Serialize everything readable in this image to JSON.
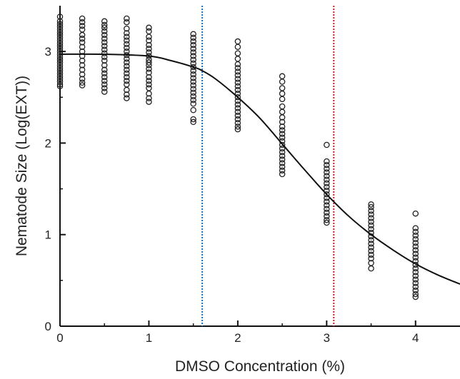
{
  "chart_data": {
    "type": "scatter",
    "title": "",
    "xlabel": "DMSO Concentration (%)",
    "ylabel": "Nematode Size (Log(EXT))",
    "xlim": [
      0,
      4.5
    ],
    "ylim": [
      0,
      3.5
    ],
    "xticks": [
      0,
      1,
      2,
      3,
      4
    ],
    "yticks": [
      0,
      1,
      2,
      3
    ],
    "x_tick_labels": [
      "0",
      "1",
      "2",
      "3",
      "4"
    ],
    "y_tick_labels": [
      "0",
      "1",
      "2",
      "3"
    ],
    "grid": false,
    "legend": "none",
    "series": [
      {
        "marker": "open-circle",
        "color": "#222222",
        "points": [
          {
            "x": 0,
            "values": [
              3.38,
              3.33,
              3.3,
              3.27,
              3.24,
              3.21,
              3.18,
              3.15,
              3.12,
              3.09,
              3.06,
              3.03,
              3.0,
              2.97,
              2.94,
              2.91,
              2.88,
              2.85,
              2.82,
              2.79,
              2.76,
              2.73,
              2.7,
              2.67,
              2.64,
              2.62
            ]
          },
          {
            "x": 0.25,
            "values": [
              3.36,
              3.32,
              3.28,
              3.24,
              3.18,
              3.14,
              3.1,
              3.05,
              3.0,
              2.95,
              2.9,
              2.85,
              2.8,
              2.75,
              2.7,
              2.66,
              2.63
            ]
          },
          {
            "x": 0.5,
            "values": [
              3.33,
              3.29,
              3.26,
              3.22,
              3.18,
              3.14,
              3.1,
              3.06,
              3.02,
              2.98,
              2.94,
              2.9,
              2.85,
              2.8,
              2.76,
              2.72,
              2.68,
              2.64,
              2.6,
              2.56
            ]
          },
          {
            "x": 0.75,
            "values": [
              3.36,
              3.32,
              3.25,
              3.2,
              3.16,
              3.12,
              3.08,
              3.04,
              3.0,
              2.96,
              2.92,
              2.88,
              2.84,
              2.8,
              2.76,
              2.72,
              2.68,
              2.64,
              2.58,
              2.53,
              2.49
            ]
          },
          {
            "x": 1,
            "values": [
              3.26,
              3.22,
              3.16,
              3.12,
              3.07,
              3.03,
              2.99,
              2.95,
              2.91,
              2.88,
              2.85,
              2.81,
              2.77,
              2.72,
              2.68,
              2.64,
              2.6,
              2.54,
              2.49,
              2.45
            ]
          },
          {
            "x": 1.5,
            "values": [
              3.19,
              3.15,
              3.11,
              3.07,
              3.03,
              2.99,
              2.95,
              2.91,
              2.87,
              2.83,
              2.79,
              2.75,
              2.71,
              2.67,
              2.63,
              2.59,
              2.55,
              2.51,
              2.47,
              2.43,
              2.36,
              2.26,
              2.23
            ]
          },
          {
            "x": 2,
            "values": [
              3.11,
              3.05,
              2.98,
              2.92,
              2.86,
              2.82,
              2.78,
              2.74,
              2.7,
              2.66,
              2.62,
              2.58,
              2.54,
              2.5,
              2.46,
              2.42,
              2.38,
              2.34,
              2.3,
              2.26,
              2.22,
              2.18,
              2.15
            ]
          },
          {
            "x": 2.5,
            "values": [
              2.73,
              2.67,
              2.6,
              2.54,
              2.48,
              2.4,
              2.34,
              2.28,
              2.23,
              2.18,
              2.14,
              2.1,
              2.06,
              2.02,
              1.98,
              1.94,
              1.9,
              1.86,
              1.82,
              1.78,
              1.74,
              1.7,
              1.66
            ]
          },
          {
            "x": 3,
            "values": [
              1.98,
              1.8,
              1.76,
              1.72,
              1.68,
              1.64,
              1.6,
              1.56,
              1.52,
              1.48,
              1.44,
              1.4,
              1.36,
              1.32,
              1.28,
              1.24,
              1.2,
              1.16,
              1.13
            ]
          },
          {
            "x": 3.5,
            "values": [
              1.33,
              1.3,
              1.26,
              1.22,
              1.18,
              1.14,
              1.1,
              1.06,
              1.02,
              0.98,
              0.94,
              0.9,
              0.86,
              0.82,
              0.78,
              0.74,
              0.69,
              0.63
            ]
          },
          {
            "x": 4,
            "values": [
              1.23,
              1.07,
              1.03,
              0.99,
              0.95,
              0.91,
              0.87,
              0.83,
              0.79,
              0.75,
              0.71,
              0.67,
              0.63,
              0.59,
              0.55,
              0.51,
              0.47,
              0.43,
              0.39,
              0.35,
              0.32
            ]
          }
        ]
      }
    ],
    "fit_curve": {
      "color": "#111111",
      "x": [
        0,
        0.5,
        1.0,
        1.25,
        1.5,
        1.6,
        1.75,
        2.0,
        2.25,
        2.5,
        2.75,
        3.0,
        3.25,
        3.5,
        3.75,
        4.0,
        4.25,
        4.5
      ],
      "y": [
        2.97,
        2.97,
        2.95,
        2.9,
        2.83,
        2.79,
        2.7,
        2.5,
        2.27,
        1.99,
        1.71,
        1.44,
        1.2,
        1.0,
        0.83,
        0.68,
        0.56,
        0.46
      ]
    },
    "reference_lines": [
      {
        "x": 1.6,
        "color": "#1a6fc0",
        "style": "dotted"
      },
      {
        "x": 3.08,
        "color": "#d0202a",
        "style": "dotted"
      }
    ]
  }
}
